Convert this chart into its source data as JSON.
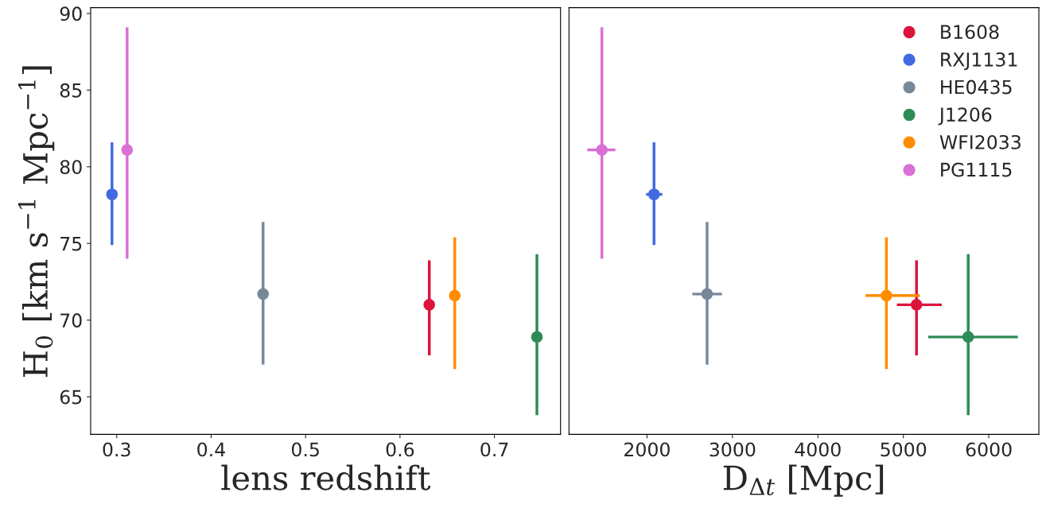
{
  "chart_data": [
    {
      "type": "scatter",
      "xlabel": "lens redshift",
      "ylabel": "H$_{0}$ [km s$^{−1}$ Mpc$^{−1}$]",
      "xlim": [
        0.2724,
        0.77
      ],
      "xticks": [
        0.3,
        0.4,
        0.5,
        0.6,
        0.7
      ],
      "ylim": [
        62.55,
        90.38
      ],
      "yticks": [
        65,
        70,
        75,
        80,
        85,
        90
      ],
      "marker": "circle",
      "grid": false,
      "legend": false,
      "series": [
        {
          "color": "#dc143c",
          "x": [
            0.631
          ],
          "values": [
            71.0
          ],
          "errors": [
            [
              67.7,
              73.9
            ]
          ]
        },
        {
          "color": "#4169e1",
          "x": [
            0.295
          ],
          "values": [
            78.2
          ],
          "errors": [
            [
              74.9,
              81.6
            ]
          ]
        },
        {
          "color": "#778899",
          "x": [
            0.455
          ],
          "values": [
            71.7
          ],
          "errors": [
            [
              67.1,
              76.4
            ]
          ]
        },
        {
          "color": "#2e8b57",
          "x": [
            0.745
          ],
          "values": [
            68.9
          ],
          "errors": [
            [
              63.8,
              74.3
            ]
          ]
        },
        {
          "color": "#ff8c00",
          "x": [
            0.658
          ],
          "values": [
            71.6
          ],
          "errors": [
            [
              66.8,
              75.4
            ]
          ]
        },
        {
          "color": "#da70d6",
          "x": [
            0.311
          ],
          "values": [
            81.1
          ],
          "errors": [
            [
              74.0,
              89.1
            ]
          ]
        }
      ]
    },
    {
      "type": "scatter",
      "xlabel": "D$_{Δt}$ [Mpc]",
      "xlim": [
        1087,
        6586
      ],
      "xticks": [
        2000,
        3000,
        4000,
        5000,
        6000
      ],
      "ylim": [
        62.55,
        90.38
      ],
      "tick_labels": "x",
      "marker": "circle",
      "grid": false,
      "legend": "top right",
      "series": [
        {
          "name": "B1608",
          "color": "#dc143c",
          "x": [
            5154
          ],
          "values": [
            71.0
          ],
          "errors": [
            [
              67.7,
              73.9
            ]
          ],
          "xerrors": [
            [
              4924,
              5449
            ]
          ]
        },
        {
          "name": "RXJ1131",
          "color": "#4169e1",
          "x": [
            2082
          ],
          "values": [
            78.2
          ],
          "errors": [
            [
              74.9,
              81.6
            ]
          ],
          "xerrors": [
            [
              1990,
              2180
            ]
          ]
        },
        {
          "name": "HE0435",
          "color": "#778899",
          "x": [
            2703
          ],
          "values": [
            71.7
          ],
          "errors": [
            [
              67.1,
              76.4
            ]
          ],
          "xerrors": [
            [
              2530,
              2878
            ]
          ]
        },
        {
          "name": "J1206",
          "color": "#2e8b57",
          "x": [
            5759
          ],
          "values": [
            68.9
          ],
          "errors": [
            [
              63.8,
              74.3
            ]
          ],
          "xerrors": [
            [
              5291,
              6340
            ]
          ]
        },
        {
          "name": "WFI2033",
          "color": "#ff8c00",
          "x": [
            4802
          ],
          "values": [
            71.6
          ],
          "errors": [
            [
              66.8,
              75.4
            ]
          ],
          "xerrors": [
            [
              4558,
              5193
            ]
          ]
        },
        {
          "name": "PG1115",
          "color": "#da70d6",
          "x": [
            1472
          ],
          "values": [
            81.1
          ],
          "errors": [
            [
              74.0,
              89.1
            ]
          ],
          "xerrors": [
            [
              1300,
              1630
            ]
          ]
        }
      ]
    }
  ]
}
